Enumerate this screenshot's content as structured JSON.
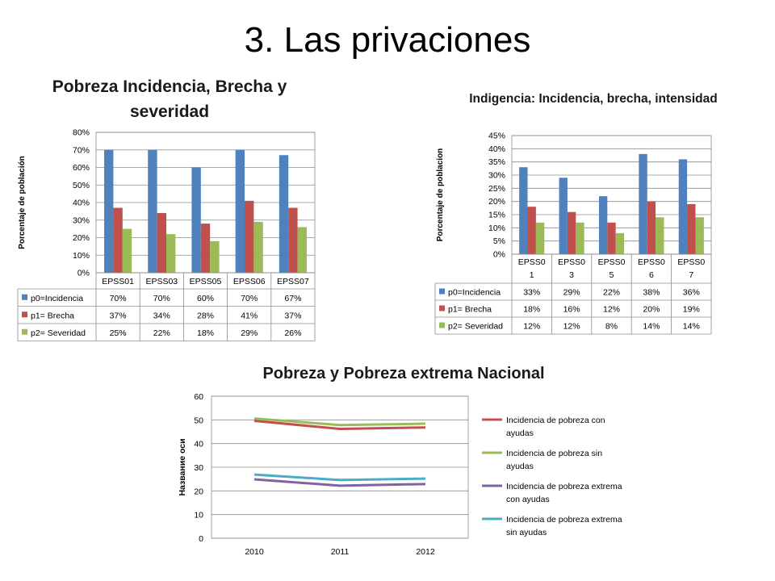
{
  "slide_title": "3. Las privaciones",
  "colors": {
    "blue": "#4F81BD",
    "red": "#C0504D",
    "green": "#9BBB59",
    "purple": "#8064A2",
    "cyan": "#4BACC6",
    "grid": "#8c8c8c"
  },
  "chart_data": [
    {
      "type": "bar",
      "title": "Pobreza Incidencia, Brecha y severidad",
      "ylabel": "Porcentaje de población",
      "ylim": [
        0,
        0.8
      ],
      "yticks": [
        "0%",
        "10%",
        "20%",
        "30%",
        "40%",
        "50%",
        "60%",
        "70%",
        "80%"
      ],
      "grid": true,
      "legend": "data-table",
      "categories": [
        "EPSS01",
        "EPSS03",
        "EPSS05",
        "EPSS06",
        "EPSS07"
      ],
      "series": [
        {
          "name": "p0=Incidencia",
          "values": [
            0.7,
            0.7,
            0.6,
            0.7,
            0.67
          ],
          "labels": [
            "70%",
            "70%",
            "60%",
            "70%",
            "67%"
          ]
        },
        {
          "name": "p1= Brecha",
          "values": [
            0.37,
            0.34,
            0.28,
            0.41,
            0.37
          ],
          "labels": [
            "37%",
            "34%",
            "28%",
            "41%",
            "37%"
          ]
        },
        {
          "name": "p2= Severidad",
          "values": [
            0.25,
            0.22,
            0.18,
            0.29,
            0.26
          ],
          "labels": [
            "25%",
            "22%",
            "18%",
            "29%",
            "26%"
          ]
        }
      ]
    },
    {
      "type": "bar",
      "title": "Indigencia: Incidencia, brecha, intensidad",
      "ylabel": "Porcentaje de poblacion",
      "ylim": [
        0,
        0.45
      ],
      "yticks": [
        "0%",
        "5%",
        "10%",
        "15%",
        "20%",
        "25%",
        "30%",
        "35%",
        "40%",
        "45%"
      ],
      "grid": true,
      "legend": "data-table",
      "categories": [
        "EPSS0 1",
        "EPSS0 3",
        "EPSS0 5",
        "EPSS0 6",
        "EPSS0 7"
      ],
      "category_lines": [
        [
          "EPSS0",
          "1"
        ],
        [
          "EPSS0",
          "3"
        ],
        [
          "EPSS0",
          "5"
        ],
        [
          "EPSS0",
          "6"
        ],
        [
          "EPSS0",
          "7"
        ]
      ],
      "series": [
        {
          "name": "p0=Incidencia",
          "values": [
            0.33,
            0.29,
            0.22,
            0.38,
            0.36
          ],
          "labels": [
            "33%",
            "29%",
            "22%",
            "38%",
            "36%"
          ]
        },
        {
          "name": "p1= Brecha",
          "values": [
            0.18,
            0.16,
            0.12,
            0.2,
            0.19
          ],
          "labels": [
            "18%",
            "16%",
            "12%",
            "20%",
            "19%"
          ]
        },
        {
          "name": "p2= Severidad",
          "values": [
            0.12,
            0.12,
            0.08,
            0.14,
            0.14
          ],
          "labels": [
            "12%",
            "12%",
            "8%",
            "14%",
            "14%"
          ]
        }
      ]
    },
    {
      "type": "line",
      "title": "Pobreza y Pobreza extrema Nacional",
      "ylabel": "Название оси",
      "xlabel": "",
      "ylim": [
        0,
        60
      ],
      "yticks": [
        "0",
        "10",
        "20",
        "30",
        "40",
        "50",
        "60"
      ],
      "grid": true,
      "legend": "right",
      "x": [
        "2010",
        "2011",
        "2012"
      ],
      "series": [
        {
          "name": "Incidencia de pobreza con ayudas",
          "legend_lines": [
            "Incidencia de pobreza con",
            "ayudas"
          ],
          "values": [
            49.6,
            46.2,
            46.8
          ]
        },
        {
          "name": "Incidencia de pobreza sin ayudas",
          "legend_lines": [
            "Incidencia de pobreza sin",
            "ayudas"
          ],
          "values": [
            50.6,
            47.8,
            48.4
          ]
        },
        {
          "name": "Incidencia de pobreza extrema con ayudas",
          "legend_lines": [
            "Incidencia de pobreza extrema",
            "con ayudas"
          ],
          "values": [
            24.9,
            22.2,
            22.9
          ]
        },
        {
          "name": "Incidencia de pobreza extrema sin ayudas",
          "legend_lines": [
            "Incidencia de pobreza extrema",
            "sin ayudas"
          ],
          "values": [
            26.9,
            24.6,
            25.2
          ]
        }
      ]
    }
  ]
}
